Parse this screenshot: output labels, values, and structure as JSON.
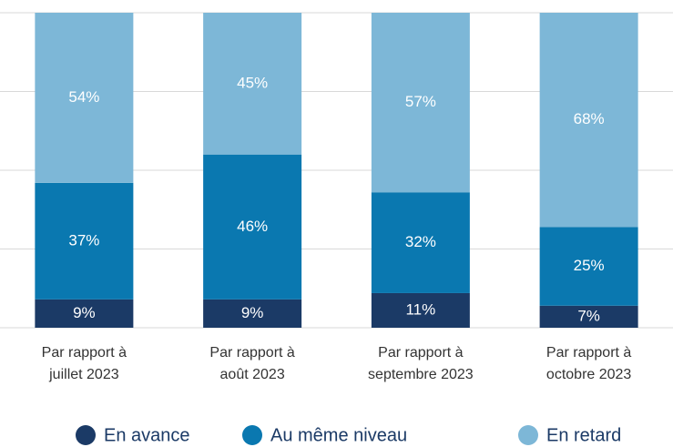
{
  "chart_data": {
    "type": "stacked_bar",
    "categories": [
      [
        "Par rapport à",
        "juillet 2023"
      ],
      [
        "Par rapport à",
        "août 2023"
      ],
      [
        "Par rapport à",
        "septembre 2023"
      ],
      [
        "Par rapport à",
        "octobre 2023"
      ]
    ],
    "series": [
      {
        "name": "En avance",
        "color": "#1b3a66",
        "values": [
          9,
          9,
          11,
          7
        ],
        "value_labels": [
          "9%",
          "9%",
          "11%",
          "7%"
        ]
      },
      {
        "name": "Au même niveau",
        "color": "#0a78b0",
        "values": [
          37,
          46,
          32,
          25
        ],
        "value_labels": [
          "37%",
          "46%",
          "32%",
          "25%"
        ]
      },
      {
        "name": "En retard",
        "color": "#7db7d7",
        "values": [
          54,
          45,
          57,
          68
        ],
        "value_labels": [
          "54%",
          "45%",
          "57%",
          "68%"
        ]
      }
    ],
    "ylim": [
      0,
      100
    ],
    "yticks": [
      0,
      25,
      50,
      75,
      100
    ],
    "grid": true
  }
}
